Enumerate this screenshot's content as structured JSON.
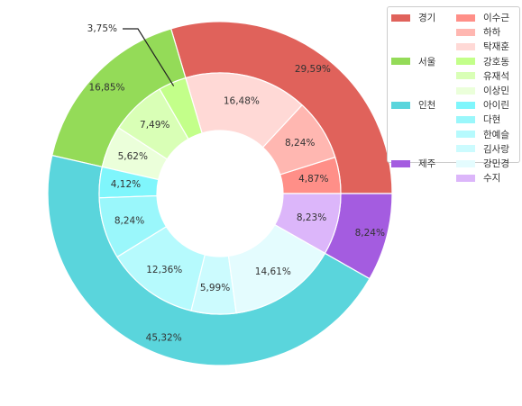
{
  "chart_data": {
    "type": "pie",
    "subtype": "nested-donut",
    "outer": {
      "categories": [
        "경기",
        "서울",
        "인천",
        "제주"
      ],
      "values": [
        29.59,
        16.85,
        45.32,
        8.24
      ],
      "labels": [
        "29,59%",
        "16,85%",
        "45,32%",
        "8,24%"
      ],
      "colors": [
        "#e0625b",
        "#94db58",
        "#5ad5dc",
        "#a45ce0"
      ]
    },
    "inner": {
      "categories": [
        "이수근",
        "하하",
        "탁재훈",
        "강호동",
        "유재석",
        "이상민",
        "아이린",
        "다현",
        "한예슬",
        "김사랑",
        "강민경",
        "수지"
      ],
      "values": [
        4.87,
        8.24,
        16.48,
        3.75,
        7.49,
        5.62,
        4.12,
        8.24,
        12.36,
        5.99,
        14.61,
        8.23
      ],
      "labels": [
        "4,87%",
        "8,24%",
        "16,48%",
        "3,75%",
        "7,49%",
        "5,62%",
        "4,12%",
        "8,24%",
        "12,36%",
        "5,99%",
        "14,61%",
        "8,23%"
      ],
      "colors": [
        "#ff8f88",
        "#ffb7b1",
        "#ffd9d6",
        "#c3ff8a",
        "#d9ffb6",
        "#ebffda",
        "#7ff6fc",
        "#9af7fb",
        "#b6fafd",
        "#ccfbfe",
        "#e4fcfe",
        "#dcb6fa"
      ],
      "callout_index": 3
    },
    "start_angle_deg": 0,
    "direction": "counterclockwise",
    "legend_position": "upper-right",
    "legend": {
      "outer_entries": [
        "경기",
        "서울",
        "인천",
        "제주"
      ],
      "inner_entries": [
        "이수근",
        "하하",
        "탁재훈",
        "강호동",
        "유재석",
        "이상민",
        "아이린",
        "다현",
        "한예슬",
        "김사랑",
        "강민경",
        "수지"
      ]
    }
  }
}
